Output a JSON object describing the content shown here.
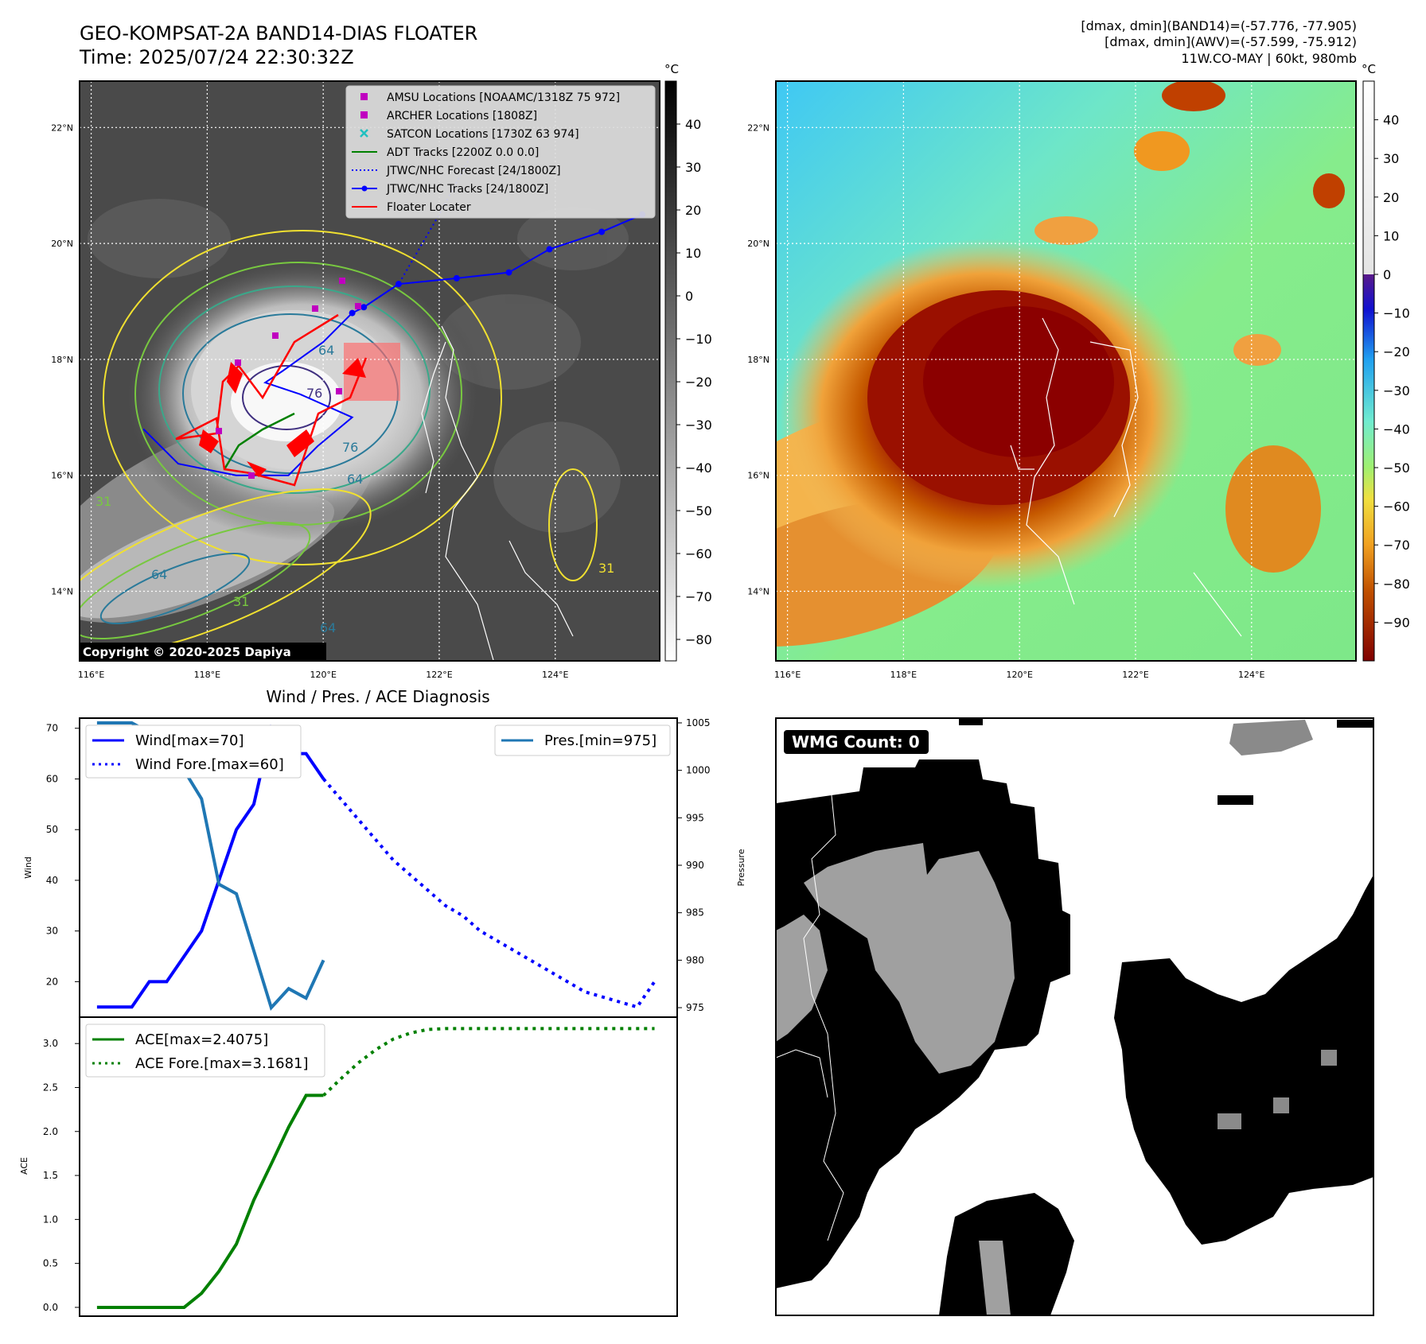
{
  "header": {
    "title_line1": "GEO-KOMPSAT-2A BAND14-DIAS FLOATER",
    "title_line2": "Time: 2025/07/24 22:30:32Z",
    "info_line1": "[dmax, dmin](BAND14)=(-57.776, -77.905)",
    "info_line2": "[dmax, dmin](AWV)=(-57.599, -75.912)",
    "info_line3": "11W.CO-MAY | 60kt, 980mb"
  },
  "copyright": "Copyright © 2020-2025 Dapiya",
  "map": {
    "lat_labels": [
      "22°N",
      "20°N",
      "18°N",
      "16°N",
      "14°N"
    ],
    "lon_labels": [
      "116°E",
      "118°E",
      "120°E",
      "122°E",
      "124°E"
    ],
    "lat_values": [
      22,
      20,
      18,
      16,
      14
    ],
    "lon_values": [
      116,
      118,
      120,
      122,
      124
    ],
    "lon_range": [
      115.8,
      125.8
    ],
    "lat_range": [
      12.8,
      22.8
    ]
  },
  "ir_colorbar": {
    "unit": "°C",
    "ticks": [
      "40",
      "30",
      "20",
      "10",
      "0",
      "−10",
      "−20",
      "−30",
      "−40",
      "−50",
      "−60",
      "−70",
      "−80"
    ],
    "tick_values": [
      40,
      30,
      20,
      10,
      0,
      -10,
      -20,
      -30,
      -40,
      -50,
      -60,
      -70,
      -80
    ],
    "range": [
      -85,
      50
    ]
  },
  "awv_colorbar": {
    "unit": "°C",
    "ticks": [
      "40",
      "30",
      "20",
      "10",
      "0",
      "−10",
      "−20",
      "−30",
      "−40",
      "−50",
      "−60",
      "−70",
      "−80",
      "−90"
    ],
    "tick_values": [
      40,
      30,
      20,
      10,
      0,
      -10,
      -20,
      -30,
      -40,
      -50,
      -60,
      -70,
      -80,
      -90
    ],
    "range": [
      -100,
      50
    ]
  },
  "legend": {
    "items": [
      {
        "label": "AMSU Locations [NOAAMC/1318Z 75 972]",
        "color": "#c000c0",
        "marker": "square"
      },
      {
        "label": "ARCHER Locations [1808Z]",
        "color": "#c000c0",
        "marker": "square"
      },
      {
        "label": "SATCON Locations [1730Z 63 974]",
        "color": "#20c0c0",
        "marker": "x"
      },
      {
        "label": "ADT Tracks [2200Z 0.0 0.0]",
        "color": "#008000",
        "marker": "line"
      },
      {
        "label": "JTWC/NHC Forecast [24/1800Z]",
        "color": "#0000ff",
        "marker": "dotted"
      },
      {
        "label": "JTWC/NHC Tracks [24/1800Z]",
        "color": "#0000ff",
        "marker": "line-dot"
      },
      {
        "label": "Floater Locater",
        "color": "#ff0000",
        "marker": "line"
      }
    ]
  },
  "contour_labels": [
    "64",
    "64",
    "64",
    "76",
    "76",
    "31",
    "31",
    "64",
    "31"
  ],
  "track": {
    "observed": [
      [
        116.9,
        16.8
      ],
      [
        117.5,
        16.2
      ],
      [
        118.5,
        16.0
      ],
      [
        119.4,
        16.0
      ],
      [
        119.9,
        16.5
      ],
      [
        120.5,
        17.0
      ],
      [
        119.6,
        17.4
      ],
      [
        119.0,
        17.6
      ],
      [
        119.3,
        17.8
      ],
      [
        120.0,
        18.3
      ],
      [
        120.5,
        18.8
      ],
      [
        120.7,
        18.9
      ],
      [
        121.3,
        19.3
      ],
      [
        122.3,
        19.4
      ],
      [
        123.2,
        19.5
      ],
      [
        123.9,
        19.9
      ],
      [
        124.8,
        20.2
      ],
      [
        125.5,
        20.5
      ]
    ],
    "forecast": [
      [
        120.7,
        18.9
      ],
      [
        121.3,
        19.3
      ],
      [
        122.0,
        20.5
      ],
      [
        122.7,
        21.8
      ]
    ]
  },
  "wmg": {
    "count_label": "WMG Count: 0"
  },
  "chart_data": [
    {
      "type": "line",
      "title": "Wind / Pres. / ACE Diagnosis",
      "ylabel": "Wind",
      "y2label": "Pressure",
      "ylim": [
        13,
        72
      ],
      "y2lim": [
        974,
        1005.5
      ],
      "yticks": [
        "70",
        "60",
        "50",
        "40",
        "30",
        "20"
      ],
      "ytick_values": [
        70,
        60,
        50,
        40,
        30,
        20
      ],
      "y2ticks": [
        "1005",
        "1000",
        "995",
        "990",
        "985",
        "980",
        "975"
      ],
      "y2tick_values": [
        1005,
        1000,
        995,
        990,
        985,
        980,
        975
      ],
      "x": [
        0,
        1,
        2,
        3,
        4,
        5,
        6,
        7,
        8,
        9,
        10,
        11,
        12,
        13,
        14,
        15,
        16,
        17,
        18,
        19,
        20,
        21,
        22,
        23,
        24,
        25,
        26,
        27,
        28,
        29,
        30,
        31,
        32
      ],
      "xlim": [
        -1,
        33.3
      ],
      "series": [
        {
          "name": "Wind[max=70]",
          "color": "#0000ff",
          "style": "solid",
          "axis": "left",
          "x": [
            0,
            1,
            2,
            3,
            4,
            5,
            6,
            7,
            8,
            9,
            10,
            11,
            12,
            13
          ],
          "values": [
            15,
            15,
            15,
            20,
            20,
            25,
            30,
            40,
            50,
            55,
            70,
            65,
            65,
            60
          ]
        },
        {
          "name": "Wind Fore.[max=60]",
          "color": "#0000ff",
          "style": "dotted",
          "axis": "left",
          "x": [
            13,
            14,
            15,
            16,
            17,
            18,
            19,
            20,
            21,
            22,
            23,
            24,
            25,
            26,
            27,
            28,
            29,
            30,
            31,
            32
          ],
          "values": [
            60,
            56,
            52,
            48,
            44,
            41,
            38,
            35,
            33,
            30,
            28,
            26,
            24,
            22,
            20,
            18,
            17,
            16,
            15,
            20
          ]
        },
        {
          "name": "Pres.[min=975]",
          "color": "#1f77b4",
          "style": "solid",
          "axis": "right",
          "x": [
            0,
            1,
            2,
            3,
            4,
            5,
            6,
            7,
            8,
            9,
            10,
            11,
            12,
            13
          ],
          "values": [
            1005,
            1005,
            1005,
            1004,
            1001,
            1000,
            997,
            988,
            987,
            981,
            975,
            977,
            976,
            980
          ]
        }
      ]
    },
    {
      "type": "line",
      "ylabel": "ACE",
      "ylim": [
        -0.1,
        3.3
      ],
      "yticks": [
        "3.0",
        "2.5",
        "2.0",
        "1.5",
        "1.0",
        "0.5",
        "0.0"
      ],
      "ytick_values": [
        3.0,
        2.5,
        2.0,
        1.5,
        1.0,
        0.5,
        0.0
      ],
      "xlim": [
        -1,
        33.3
      ],
      "series": [
        {
          "name": "ACE[max=2.4075]",
          "color": "#008000",
          "style": "solid",
          "x": [
            0,
            1,
            2,
            3,
            4,
            5,
            6,
            7,
            8,
            9,
            10,
            11,
            12,
            13
          ],
          "values": [
            0,
            0,
            0,
            0,
            0,
            0,
            0.16,
            0.41,
            0.72,
            1.22,
            1.63,
            2.05,
            2.41,
            2.41
          ]
        },
        {
          "name": "ACE Fore.[max=3.1681]",
          "color": "#008000",
          "style": "dotted",
          "x": [
            13,
            14,
            15,
            16,
            17,
            18,
            19,
            20,
            21,
            22,
            23,
            24,
            25,
            26,
            27,
            28,
            29,
            30,
            31,
            32
          ],
          "values": [
            2.41,
            2.6,
            2.78,
            2.93,
            3.05,
            3.12,
            3.16,
            3.17,
            3.17,
            3.17,
            3.17,
            3.17,
            3.17,
            3.17,
            3.17,
            3.17,
            3.17,
            3.17,
            3.17,
            3.17
          ]
        }
      ]
    }
  ]
}
